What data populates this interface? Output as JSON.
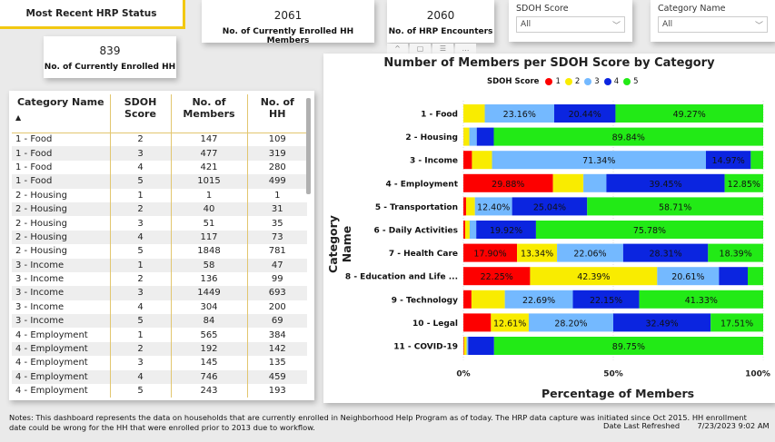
{
  "header": {
    "status_button": "Most Recent HRP Status"
  },
  "kpis": [
    {
      "value": "839",
      "label": "No. of Currently Enrolled HH"
    },
    {
      "value": "2061",
      "label": "No. of Currently Enrolled HH Members"
    },
    {
      "value": "2060",
      "label": "No. of HRP Encounters"
    }
  ],
  "slicers": [
    {
      "title": "SDOH Score",
      "value": "All"
    },
    {
      "title": "Category Name",
      "value": "All"
    }
  ],
  "visual_toolbar": {
    "icons": [
      "pin-icon",
      "copy-icon",
      "filter-icon",
      "more-icon"
    ]
  },
  "table": {
    "headers": [
      "Category Name",
      "SDOH Score",
      "No. of Members",
      "No. of HH"
    ],
    "sort_indicator": "▲",
    "rows": [
      [
        "1 - Food",
        "2",
        "147",
        "109"
      ],
      [
        "1 - Food",
        "3",
        "477",
        "319"
      ],
      [
        "1 - Food",
        "4",
        "421",
        "280"
      ],
      [
        "1 - Food",
        "5",
        "1015",
        "499"
      ],
      [
        "2 - Housing",
        "1",
        "1",
        "1"
      ],
      [
        "2 - Housing",
        "2",
        "40",
        "31"
      ],
      [
        "2 - Housing",
        "3",
        "51",
        "35"
      ],
      [
        "2 - Housing",
        "4",
        "117",
        "73"
      ],
      [
        "2 - Housing",
        "5",
        "1848",
        "781"
      ],
      [
        "3 - Income",
        "1",
        "58",
        "47"
      ],
      [
        "3 - Income",
        "2",
        "136",
        "99"
      ],
      [
        "3 - Income",
        "3",
        "1449",
        "693"
      ],
      [
        "3 - Income",
        "4",
        "304",
        "200"
      ],
      [
        "3 - Income",
        "5",
        "84",
        "69"
      ],
      [
        "4 - Employment",
        "1",
        "565",
        "384"
      ],
      [
        "4 - Employment",
        "2",
        "192",
        "142"
      ],
      [
        "4 - Employment",
        "3",
        "145",
        "135"
      ],
      [
        "4 - Employment",
        "4",
        "746",
        "459"
      ],
      [
        "4 - Employment",
        "5",
        "243",
        "193"
      ]
    ]
  },
  "chart_data": {
    "type": "bar",
    "orientation": "horizontal",
    "stacked": "100%",
    "title": "Number of Members per SDOH Score by Category",
    "legend_title": "SDOH Score",
    "legend_position": "top-center",
    "xlabel": "Percentage of Members",
    "ylabel": "Category Name",
    "xlim": [
      0,
      100
    ],
    "x_ticks": [
      "0%",
      "50%",
      "100%"
    ],
    "categories": [
      "1 - Food",
      "2 - Housing",
      "3 - Income",
      "4 - Employment",
      "5 - Transportation",
      "6 - Daily Activities",
      "7 - Health Care",
      "8 - Education and Life ...",
      "9 - Technology",
      "10 - Legal",
      "11 - COVID-19"
    ],
    "series": [
      {
        "name": "1",
        "color": "#fd0000",
        "values": [
          0,
          0.05,
          2.86,
          29.88,
          0.9,
          0.6,
          17.9,
          22.25,
          2.7,
          9.19,
          0.2
        ]
      },
      {
        "name": "2",
        "color": "#f9ec00",
        "values": [
          7.14,
          1.94,
          6.7,
          10.15,
          2.95,
          1.5,
          13.34,
          42.39,
          11.13,
          12.61,
          0.9
        ]
      },
      {
        "name": "3",
        "color": "#74b9ff",
        "values": [
          23.16,
          2.48,
          71.34,
          7.67,
          12.4,
          2.2,
          22.06,
          20.61,
          22.69,
          28.2,
          0.5
        ]
      },
      {
        "name": "4",
        "color": "#0b25e0",
        "values": [
          20.44,
          5.69,
          14.97,
          39.45,
          25.04,
          19.92,
          28.31,
          9.6,
          22.15,
          32.49,
          8.65
        ]
      },
      {
        "name": "5",
        "color": "#22ea16",
        "values": [
          49.27,
          89.84,
          4.14,
          12.85,
          58.71,
          75.78,
          18.39,
          5.15,
          41.33,
          17.51,
          89.75
        ]
      }
    ],
    "data_labels": [
      [
        null,
        null,
        "23.16%",
        "20.44%",
        "49.27%"
      ],
      [
        null,
        null,
        null,
        null,
        "89.84%"
      ],
      [
        null,
        null,
        "71.34%",
        "14.97%",
        null
      ],
      [
        "29.88%",
        null,
        null,
        "39.45%",
        "12.85%"
      ],
      [
        null,
        null,
        "12.40%",
        "25.04%",
        "58.71%"
      ],
      [
        null,
        null,
        null,
        "19.92%",
        "75.78%"
      ],
      [
        "17.90%",
        "13.34%",
        "22.06%",
        "28.31%",
        "18.39%"
      ],
      [
        "22.25%",
        "42.39%",
        "20.61%",
        null,
        null
      ],
      [
        null,
        null,
        "22.69%",
        "22.15%",
        "41.33%"
      ],
      [
        null,
        "12.61%",
        "28.20%",
        "32.49%",
        "17.51%"
      ],
      [
        null,
        null,
        null,
        null,
        "89.75%"
      ]
    ]
  },
  "footer": {
    "notes": "Notes: This dashboard represents the data on households that are currently enrolled in Neighborhood Help Program as of today. The HRP data capture was initiated since Oct 2015. HH enrollment date could be wrong for the HH that were enrolled prior to 2013 due to workflow.",
    "refresh_label": "Date Last Refreshed",
    "refresh_value": "7/23/2023 9:02 AM"
  }
}
